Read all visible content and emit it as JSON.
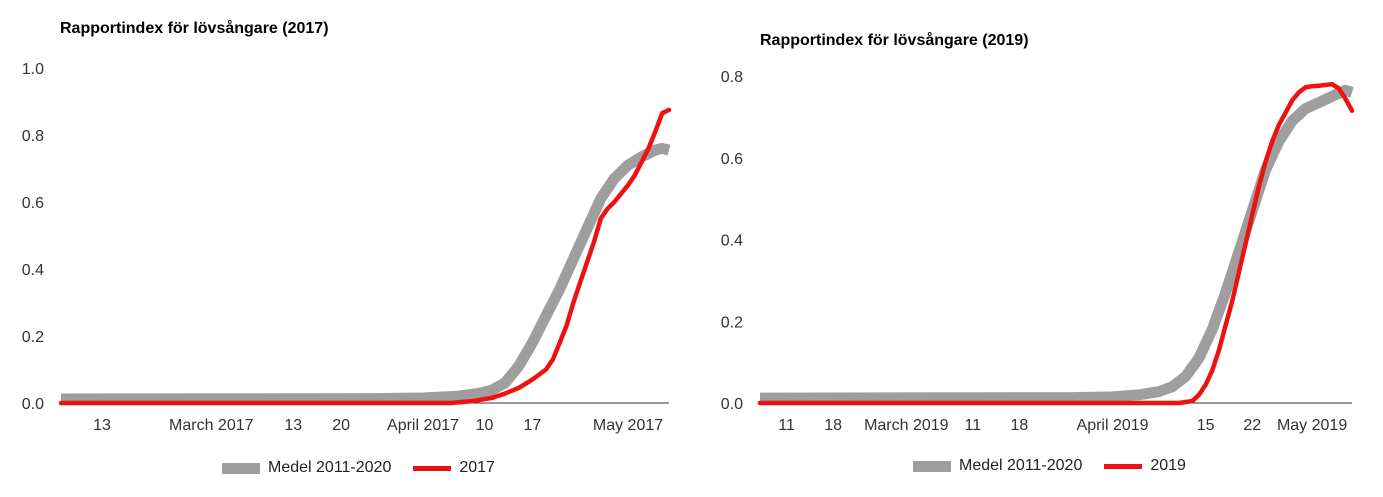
{
  "chart_data": [
    {
      "type": "line",
      "title": "Rapportindex för lövsångare (2017)",
      "xlabel": "",
      "ylabel": "",
      "x_range": [
        "2017-02-07",
        "2017-05-07"
      ],
      "ylim": [
        0,
        1.0
      ],
      "y_ticks": [
        "0.0",
        "0.2",
        "0.4",
        "0.6",
        "0.8",
        "1.0"
      ],
      "x_ticks": [
        {
          "date": "2017-02-13",
          "label": "13"
        },
        {
          "date": "2017-03-01",
          "label": "March 2017"
        },
        {
          "date": "2017-03-13",
          "label": "13"
        },
        {
          "date": "2017-03-20",
          "label": "20"
        },
        {
          "date": "2017-04-01",
          "label": "April 2017"
        },
        {
          "date": "2017-04-10",
          "label": "10"
        },
        {
          "date": "2017-04-17",
          "label": "17"
        },
        {
          "date": "2017-05-01",
          "label": "May 2017"
        }
      ],
      "grid": false,
      "legend_position": "bottom-center",
      "series": [
        {
          "name": "Medel 2011-2020",
          "color": "#9e9e9e",
          "style": "band",
          "points": [
            [
              "2017-02-07",
              0.012
            ],
            [
              "2017-03-25",
              0.013
            ],
            [
              "2017-04-01",
              0.015
            ],
            [
              "2017-04-06",
              0.02
            ],
            [
              "2017-04-09",
              0.028
            ],
            [
              "2017-04-11",
              0.038
            ],
            [
              "2017-04-13",
              0.06
            ],
            [
              "2017-04-15",
              0.11
            ],
            [
              "2017-04-17",
              0.18
            ],
            [
              "2017-04-19",
              0.26
            ],
            [
              "2017-04-21",
              0.34
            ],
            [
              "2017-04-23",
              0.43
            ],
            [
              "2017-04-25",
              0.52
            ],
            [
              "2017-04-27",
              0.61
            ],
            [
              "2017-04-29",
              0.67
            ],
            [
              "2017-05-01",
              0.71
            ],
            [
              "2017-05-03",
              0.735
            ],
            [
              "2017-05-05",
              0.755
            ],
            [
              "2017-05-06",
              0.76
            ],
            [
              "2017-05-07",
              0.755
            ]
          ]
        },
        {
          "name": "2017",
          "color": "#ee1111",
          "style": "line",
          "points": [
            [
              "2017-02-07",
              0.0
            ],
            [
              "2017-04-05",
              0.0
            ],
            [
              "2017-04-08",
              0.005
            ],
            [
              "2017-04-11",
              0.015
            ],
            [
              "2017-04-13",
              0.028
            ],
            [
              "2017-04-15",
              0.045
            ],
            [
              "2017-04-17",
              0.07
            ],
            [
              "2017-04-19",
              0.1
            ],
            [
              "2017-04-20",
              0.13
            ],
            [
              "2017-04-21",
              0.18
            ],
            [
              "2017-04-22",
              0.23
            ],
            [
              "2017-04-23",
              0.3
            ],
            [
              "2017-04-24",
              0.36
            ],
            [
              "2017-04-25",
              0.42
            ],
            [
              "2017-04-26",
              0.48
            ],
            [
              "2017-04-27",
              0.55
            ],
            [
              "2017-04-28",
              0.58
            ],
            [
              "2017-04-29",
              0.6
            ],
            [
              "2017-04-30",
              0.625
            ],
            [
              "2017-05-01",
              0.65
            ],
            [
              "2017-05-02",
              0.68
            ],
            [
              "2017-05-03",
              0.72
            ],
            [
              "2017-05-04",
              0.76
            ],
            [
              "2017-05-05",
              0.81
            ],
            [
              "2017-05-06",
              0.865
            ],
            [
              "2017-05-07",
              0.875
            ]
          ]
        }
      ]
    },
    {
      "type": "line",
      "title": "Rapportindex för lövsångare (2019)",
      "xlabel": "",
      "ylabel": "",
      "x_range": [
        "2019-02-07",
        "2019-05-07"
      ],
      "ylim": [
        0,
        0.8
      ],
      "y_ticks": [
        "0.0",
        "0.2",
        "0.4",
        "0.6",
        "0.8"
      ],
      "x_ticks": [
        {
          "date": "2019-02-11",
          "label": "11"
        },
        {
          "date": "2019-02-18",
          "label": "18"
        },
        {
          "date": "2019-03-01",
          "label": "March 2019"
        },
        {
          "date": "2019-03-11",
          "label": "11"
        },
        {
          "date": "2019-03-18",
          "label": "18"
        },
        {
          "date": "2019-04-01",
          "label": "April 2019"
        },
        {
          "date": "2019-04-15",
          "label": "15"
        },
        {
          "date": "2019-04-22",
          "label": "22"
        },
        {
          "date": "2019-05-01",
          "label": "May 2019"
        }
      ],
      "grid": false,
      "legend_position": "bottom-center",
      "series": [
        {
          "name": "Medel 2011-2020",
          "color": "#9e9e9e",
          "style": "band",
          "points": [
            [
              "2019-02-07",
              0.012
            ],
            [
              "2019-03-25",
              0.013
            ],
            [
              "2019-04-01",
              0.015
            ],
            [
              "2019-04-05",
              0.02
            ],
            [
              "2019-04-08",
              0.028
            ],
            [
              "2019-04-10",
              0.04
            ],
            [
              "2019-04-12",
              0.065
            ],
            [
              "2019-04-14",
              0.11
            ],
            [
              "2019-04-16",
              0.18
            ],
            [
              "2019-04-18",
              0.27
            ],
            [
              "2019-04-20",
              0.37
            ],
            [
              "2019-04-22",
              0.47
            ],
            [
              "2019-04-24",
              0.57
            ],
            [
              "2019-04-26",
              0.64
            ],
            [
              "2019-04-28",
              0.69
            ],
            [
              "2019-04-30",
              0.72
            ],
            [
              "2019-05-02",
              0.735
            ],
            [
              "2019-05-04",
              0.75
            ],
            [
              "2019-05-06",
              0.765
            ],
            [
              "2019-05-07",
              0.76
            ]
          ]
        },
        {
          "name": "2019",
          "color": "#ee1111",
          "style": "line",
          "points": [
            [
              "2019-02-07",
              0.0
            ],
            [
              "2019-04-11",
              0.0
            ],
            [
              "2019-04-13",
              0.005
            ],
            [
              "2019-04-14",
              0.02
            ],
            [
              "2019-04-15",
              0.045
            ],
            [
              "2019-04-16",
              0.08
            ],
            [
              "2019-04-17",
              0.13
            ],
            [
              "2019-04-18",
              0.19
            ],
            [
              "2019-04-19",
              0.25
            ],
            [
              "2019-04-20",
              0.32
            ],
            [
              "2019-04-21",
              0.39
            ],
            [
              "2019-04-22",
              0.46
            ],
            [
              "2019-04-23",
              0.53
            ],
            [
              "2019-04-24",
              0.59
            ],
            [
              "2019-04-25",
              0.64
            ],
            [
              "2019-04-26",
              0.68
            ],
            [
              "2019-04-27",
              0.71
            ],
            [
              "2019-04-28",
              0.74
            ],
            [
              "2019-04-29",
              0.76
            ],
            [
              "2019-04-30",
              0.772
            ],
            [
              "2019-05-01",
              0.775
            ],
            [
              "2019-05-02",
              0.776
            ],
            [
              "2019-05-03",
              0.778
            ],
            [
              "2019-05-04",
              0.78
            ],
            [
              "2019-05-05",
              0.77
            ],
            [
              "2019-05-06",
              0.745
            ],
            [
              "2019-05-07",
              0.715
            ]
          ]
        }
      ]
    }
  ]
}
